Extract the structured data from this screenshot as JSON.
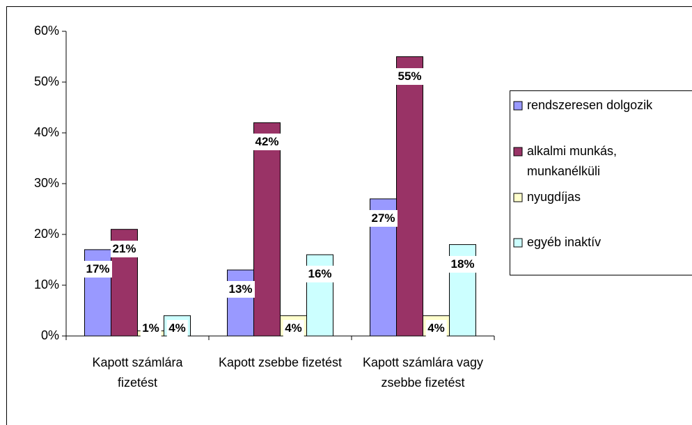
{
  "chart_data": {
    "type": "bar",
    "categories": [
      "Kapott számlára fizetést",
      "Kapott zsebbe fizetést",
      "Kapott számlára vagy zsebbe fizetést"
    ],
    "series": [
      {
        "name": "rendszeresen dolgozik",
        "color": "#9999ff",
        "values": [
          17,
          13,
          27
        ],
        "value_labels": [
          "17%",
          "13%",
          "27%"
        ]
      },
      {
        "name": "alkalmi munkás, munkanélküli",
        "color": "#993366",
        "values": [
          21,
          42,
          55
        ],
        "value_labels": [
          "21%",
          "42%",
          "55%"
        ]
      },
      {
        "name": "nyugdíjas",
        "color": "#ffffcc",
        "values": [
          1,
          4,
          4
        ],
        "value_labels": [
          "1%",
          "4%",
          "4%"
        ]
      },
      {
        "name": "egyéb inaktív",
        "color": "#ccffff",
        "values": [
          4,
          16,
          18
        ],
        "value_labels": [
          "4%",
          "16%",
          "18%"
        ]
      }
    ],
    "ylim": [
      0,
      60
    ],
    "yticks": [
      {
        "value": 0,
        "label": "0%"
      },
      {
        "value": 10,
        "label": "10%"
      },
      {
        "value": 20,
        "label": "20%"
      },
      {
        "value": 30,
        "label": "30%"
      },
      {
        "value": 40,
        "label": "40%"
      },
      {
        "value": 50,
        "label": "50%"
      },
      {
        "value": 60,
        "label": "60%"
      }
    ],
    "legend": "right"
  }
}
